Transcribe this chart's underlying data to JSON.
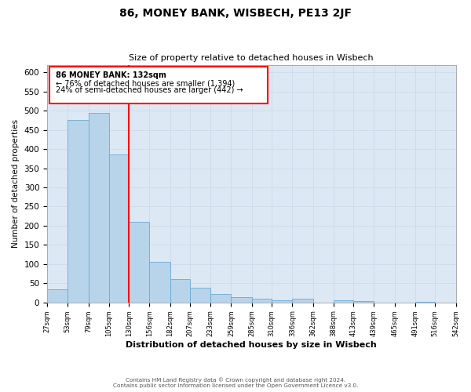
{
  "title": "86, MONEY BANK, WISBECH, PE13 2JF",
  "subtitle": "Size of property relative to detached houses in Wisbech",
  "xlabel": "Distribution of detached houses by size in Wisbech",
  "ylabel": "Number of detached properties",
  "footer_line1": "Contains HM Land Registry data © Crown copyright and database right 2024.",
  "footer_line2": "Contains public sector information licensed under the Open Government Licence v3.0.",
  "bin_edges": [
    27,
    53,
    79,
    105,
    130,
    156,
    182,
    207,
    233,
    259,
    285,
    310,
    336,
    362,
    388,
    413,
    439,
    465,
    491,
    516,
    542
  ],
  "bin_counts": [
    35,
    475,
    495,
    385,
    210,
    105,
    60,
    38,
    22,
    13,
    10,
    5,
    10,
    0,
    5,
    3,
    0,
    0,
    2,
    0,
    2
  ],
  "bar_color": "#b8d4ea",
  "bar_edge_color": "#6aaad4",
  "red_line_x": 130,
  "annotation_text_line1": "86 MONEY BANK: 132sqm",
  "annotation_text_line2": "← 76% of detached houses are smaller (1,394)",
  "annotation_text_line3": "24% of semi-detached houses are larger (442) →",
  "ylim": [
    0,
    620
  ],
  "yticks": [
    0,
    50,
    100,
    150,
    200,
    250,
    300,
    350,
    400,
    450,
    500,
    550,
    600
  ],
  "background_color": "#ffffff",
  "grid_color": "#c8d8e8",
  "axes_bg_color": "#dce8f4"
}
